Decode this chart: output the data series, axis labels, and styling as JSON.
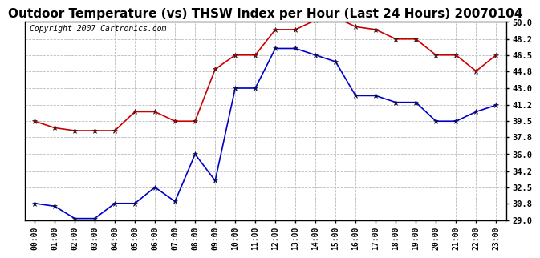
{
  "title": "Outdoor Temperature (vs) THSW Index per Hour (Last 24 Hours) 20070104",
  "copyright": "Copyright 2007 Cartronics.com",
  "hours": [
    "00:00",
    "01:00",
    "02:00",
    "03:00",
    "04:00",
    "05:00",
    "06:00",
    "07:00",
    "08:00",
    "09:00",
    "10:00",
    "11:00",
    "12:00",
    "13:00",
    "14:00",
    "15:00",
    "16:00",
    "17:00",
    "18:00",
    "19:00",
    "20:00",
    "21:00",
    "22:00",
    "23:00"
  ],
  "blue_data": [
    30.8,
    30.5,
    29.2,
    29.2,
    30.8,
    30.8,
    32.5,
    31.0,
    36.0,
    33.2,
    43.0,
    43.0,
    47.2,
    47.2,
    46.5,
    45.8,
    42.2,
    42.2,
    41.5,
    41.5,
    39.5,
    39.5,
    40.5,
    41.2
  ],
  "red_data": [
    39.5,
    38.8,
    38.5,
    38.5,
    38.5,
    40.5,
    40.5,
    39.5,
    39.5,
    45.0,
    46.5,
    46.5,
    49.2,
    49.2,
    50.2,
    50.5,
    49.5,
    49.2,
    48.2,
    48.2,
    46.5,
    46.5,
    44.8,
    46.5
  ],
  "ylim_min": 29.0,
  "ylim_max": 50.0,
  "yticks": [
    29.0,
    30.8,
    32.5,
    34.2,
    36.0,
    37.8,
    39.5,
    41.2,
    43.0,
    44.8,
    46.5,
    48.2,
    50.0
  ],
  "blue_color": "#0000cc",
  "red_color": "#cc0000",
  "bg_color": "#ffffff",
  "grid_color": "#bbbbbb",
  "title_color": "#000000",
  "title_fontsize": 11,
  "copyright_fontsize": 7
}
